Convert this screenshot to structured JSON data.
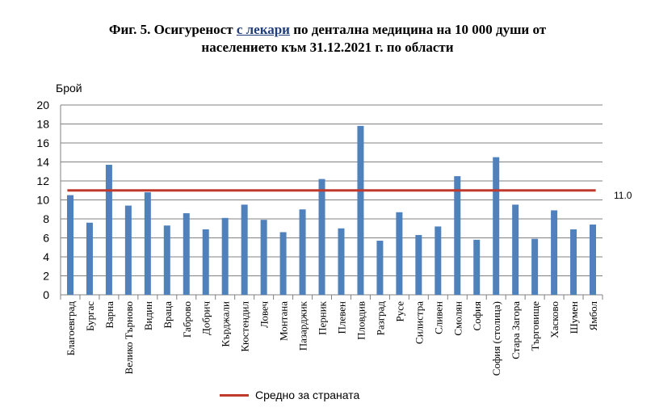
{
  "title": {
    "line1_a": "Фиг. 5. Осигуреност ",
    "line1_u": "с лекари",
    "line1_b": " по дентална медицина на 10 000 души от",
    "line2": "населението към 31.12.2021 г. по области"
  },
  "chart_data": {
    "type": "bar",
    "ylabel": "Брой",
    "ylim": [
      0,
      20
    ],
    "yticks": [
      0,
      2,
      4,
      6,
      8,
      10,
      12,
      14,
      16,
      18,
      20
    ],
    "grid": true,
    "categories": [
      "Благоевград",
      "Бургас",
      "Варна",
      "Велико Търново",
      "Видин",
      "Враца",
      "Габрово",
      "Добрич",
      "Кърджали",
      "Кюстендил",
      "Ловеч",
      "Монтана",
      "Пазарджик",
      "Перник",
      "Плевен",
      "Пловдив",
      "Разград",
      "Русе",
      "Силистра",
      "Сливен",
      "Смолян",
      "София",
      "София (столица)",
      "Стара Загора",
      "Търговище",
      "Хасково",
      "Шумен",
      "Ямбол"
    ],
    "values": [
      10.5,
      7.6,
      13.7,
      9.4,
      10.8,
      7.3,
      8.6,
      6.9,
      8.1,
      9.5,
      7.9,
      6.6,
      9.0,
      12.2,
      7.0,
      17.8,
      5.7,
      8.7,
      6.3,
      7.2,
      12.5,
      5.8,
      14.5,
      9.5,
      5.9,
      8.9,
      6.9,
      7.4
    ],
    "bar_color": "#4f81bd",
    "reference_line": {
      "value": 11.0,
      "label": "11.0",
      "color": "#c0392b"
    },
    "legend": {
      "label": "Средно за страната",
      "position": "bottom"
    }
  }
}
